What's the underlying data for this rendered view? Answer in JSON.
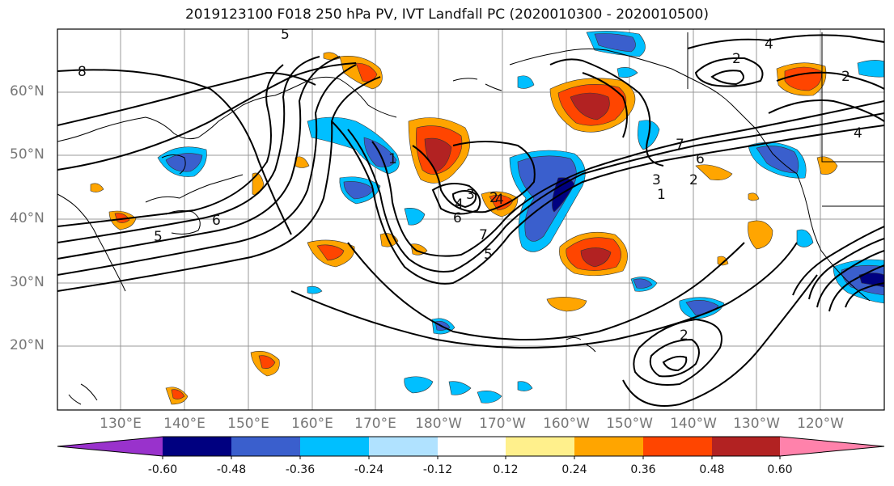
{
  "title": "2019123100 F018 250 hPa PV, IVT Landfall PC (2020010300 - 2020010500)",
  "lat_labels": [
    "60°N",
    "50°N",
    "40°N",
    "30°N",
    "20°N"
  ],
  "lon_labels": [
    "130°E",
    "140°E",
    "150°E",
    "160°E",
    "170°E",
    "180°W",
    "170°W",
    "160°W",
    "150°W",
    "140°W",
    "130°W",
    "120°W"
  ],
  "colorbar": {
    "tick_labels": [
      "-0.60",
      "-0.48",
      "-0.36",
      "-0.24",
      "-0.12",
      "0.12",
      "0.24",
      "0.36",
      "0.48",
      "0.60"
    ],
    "colors": [
      "#9932cc",
      "#000080",
      "#3a5fcd",
      "#00bfff",
      "#b0e2ff",
      "#ffffff",
      "#fff08c",
      "#ffa500",
      "#ff4500",
      "#b22222",
      "#ff82ab"
    ]
  },
  "contour_labels": [
    "8",
    "5",
    "6",
    "5",
    "4",
    "3",
    "2",
    "1",
    "4",
    "6",
    "7",
    "5",
    "7",
    "6",
    "3",
    "2",
    "1",
    "2",
    "4",
    "2",
    "2",
    "4"
  ]
}
